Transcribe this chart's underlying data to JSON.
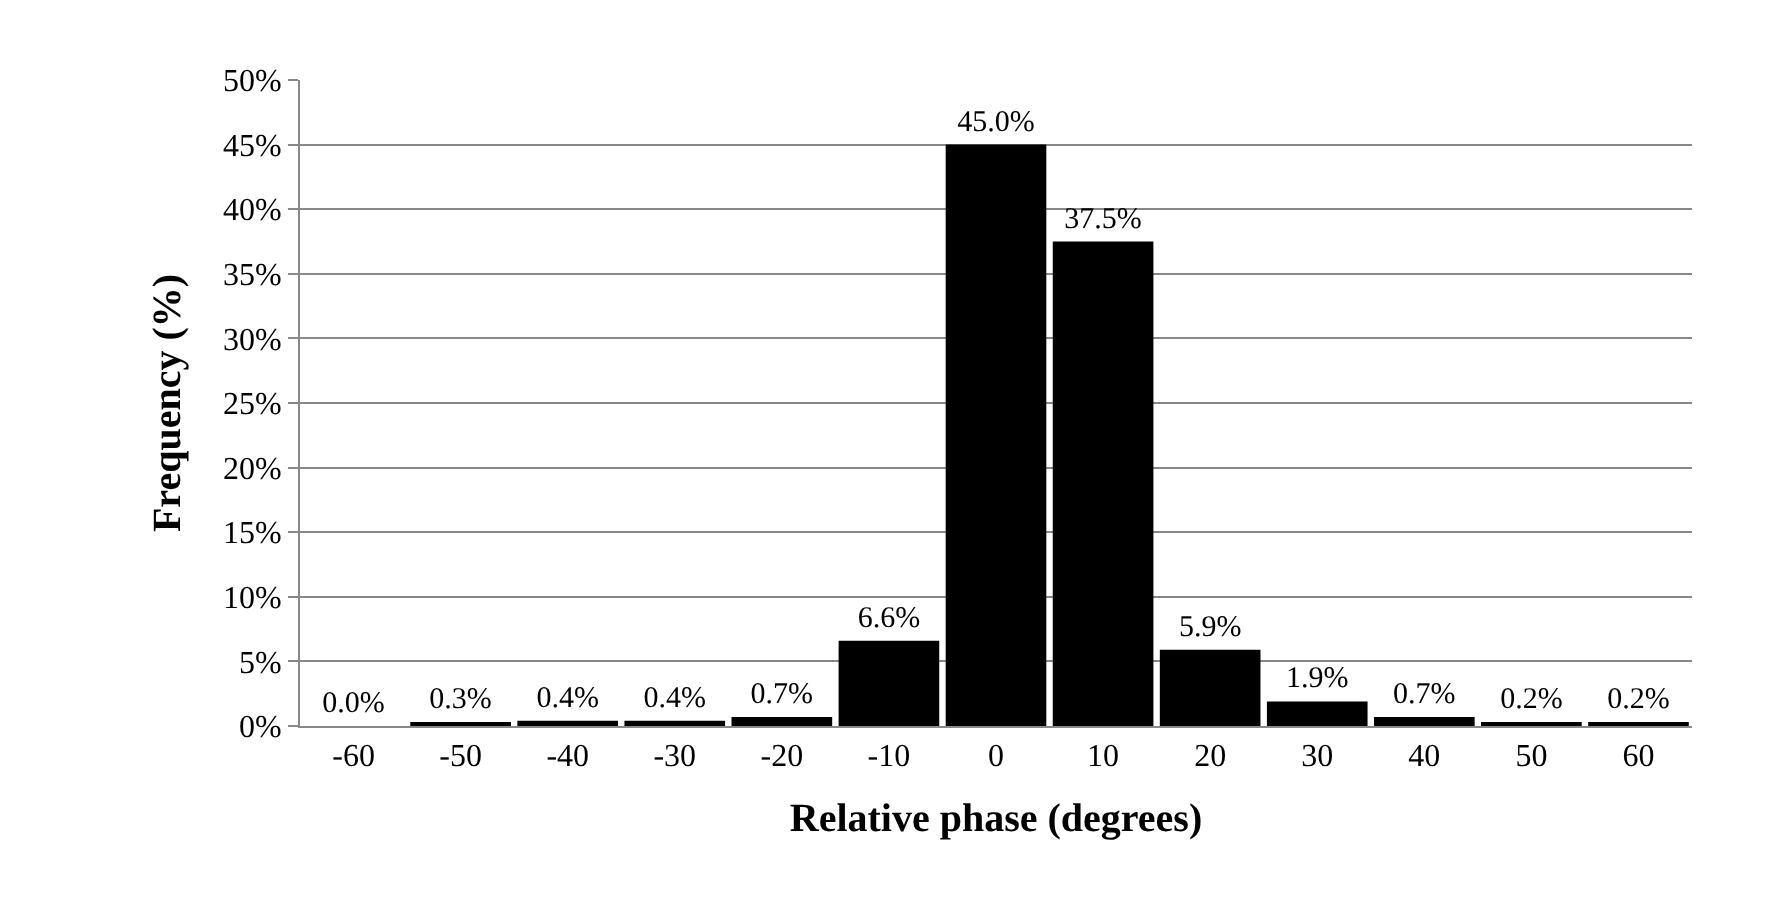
{
  "chart_data": {
    "type": "bar",
    "xlabel": "Relative phase (degrees)",
    "ylabel": "Frequency (%)",
    "categories": [
      "-60",
      "-50",
      "-40",
      "-30",
      "-20",
      "-10",
      "0",
      "10",
      "20",
      "30",
      "40",
      "50",
      "60"
    ],
    "values": [
      0.0,
      0.3,
      0.4,
      0.4,
      0.7,
      6.6,
      45.0,
      37.5,
      5.9,
      1.9,
      0.7,
      0.2,
      0.2
    ],
    "value_labels": [
      "0.0%",
      "0.3%",
      "0.4%",
      "0.4%",
      "0.7%",
      "6.6%",
      "45.0%",
      "37.5%",
      "5.9%",
      "1.9%",
      "0.7%",
      "0.2%",
      "0.2%"
    ],
    "color": "#000000",
    "ylim": [
      0,
      50
    ],
    "yticks": [
      {
        "value": 0,
        "label": "0%"
      },
      {
        "value": 5,
        "label": "5%"
      },
      {
        "value": 10,
        "label": "10%"
      },
      {
        "value": 15,
        "label": "15%"
      },
      {
        "value": 20,
        "label": "20%"
      },
      {
        "value": 25,
        "label": "25%"
      },
      {
        "value": 30,
        "label": "30%"
      },
      {
        "value": 35,
        "label": "35%"
      },
      {
        "value": 40,
        "label": "40%"
      },
      {
        "value": 45,
        "label": "45%"
      },
      {
        "value": 50,
        "label": "50%"
      }
    ],
    "grid": "y"
  }
}
